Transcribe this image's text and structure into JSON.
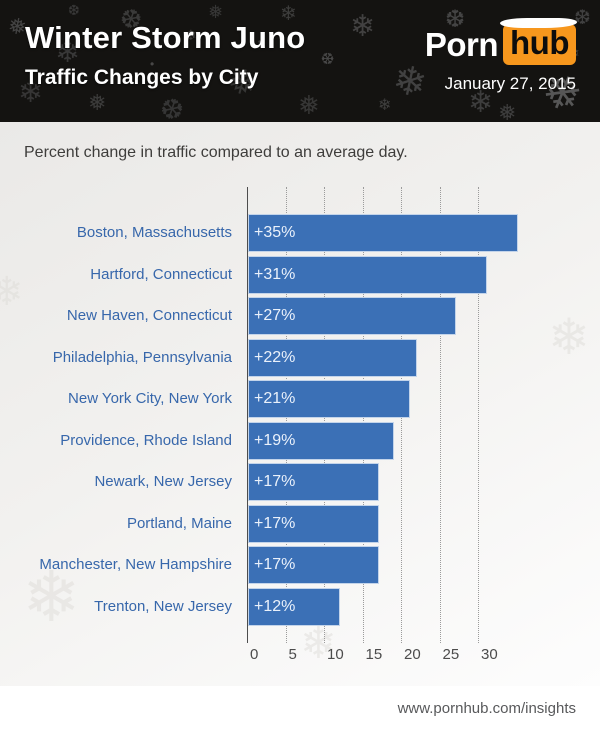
{
  "header": {
    "title": "Winter Storm Juno",
    "subtitle": "Traffic Changes by City",
    "date": "January 27, 2015",
    "logo": {
      "part1": "Porn",
      "part2": "hub"
    }
  },
  "chart_data": {
    "type": "bar",
    "orientation": "horizontal",
    "title": "Percent change in traffic compared to an average day.",
    "categories": [
      "Boston, Massachusetts",
      "Hartford, Connecticut",
      "New Haven, Connecticut",
      "Philadelphia, Pennsylvania",
      "New York City, New York",
      "Providence, Rhode Island",
      "Newark, New Jersey",
      "Portland, Maine",
      "Manchester, New Hampshire",
      "Trenton, New Jersey"
    ],
    "values": [
      35,
      31,
      27,
      22,
      21,
      19,
      17,
      17,
      17,
      12
    ],
    "value_labels": [
      "+35%",
      "+31%",
      "+27%",
      "+22%",
      "+21%",
      "+19%",
      "+17%",
      "+17%",
      "+17%",
      "+12%"
    ],
    "xticks": [
      0,
      5,
      10,
      15,
      20,
      25,
      30
    ],
    "xlim": [
      0,
      36.5
    ],
    "xlabel": "",
    "ylabel": "",
    "grid": "vertical-dotted",
    "legend": "none",
    "bar_color": "#3b70b6",
    "bar_border_color": "#c3d4ea",
    "category_label_color": "#3767ab",
    "value_label_color": "#eaf1fb",
    "grid_color": "#9b9b9b",
    "axis_color": "#4d4d4d",
    "tick_label_color": "#4c4c4c"
  },
  "footer": {
    "url": "www.pornhub.com/insights"
  },
  "colors": {
    "header_bg": "#141311",
    "logo_orange": "#f7971d",
    "chart_bg_top": "#eae9e7",
    "chart_bg_bottom": "#fdfdfd",
    "footer_bg": "#ffffff"
  },
  "decor": {
    "snowflake_glyphs": [
      "❄",
      "❅",
      "❆",
      "•"
    ]
  }
}
